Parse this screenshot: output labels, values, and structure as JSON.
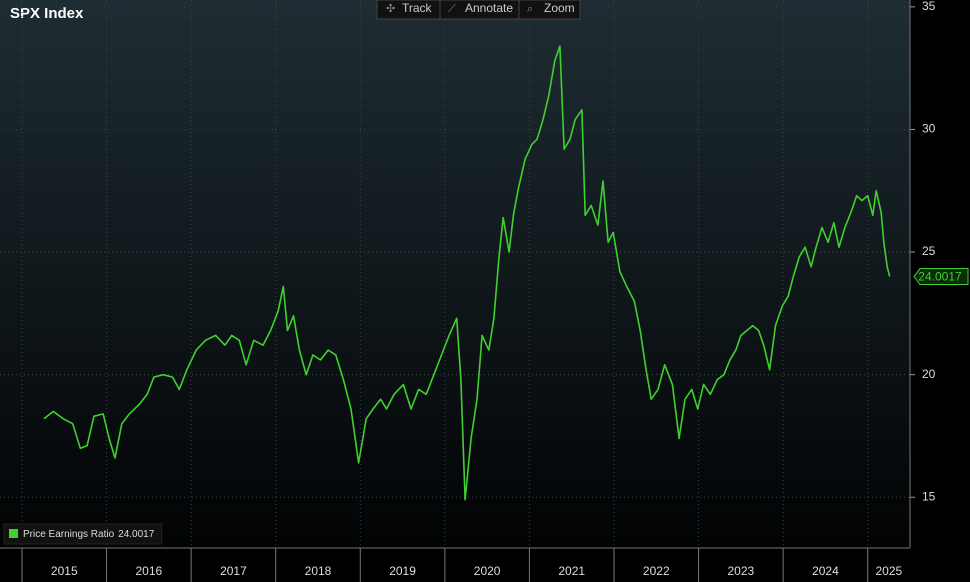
{
  "toolbar": [
    "Track",
    "Annotate",
    "Zoom"
  ],
  "chart_data": {
    "type": "line",
    "title": "SPX Index",
    "x": [
      2015.26,
      2015.37,
      2015.49,
      2015.6,
      2015.69,
      2015.77,
      2015.85,
      2015.96,
      2016.03,
      2016.1,
      2016.18,
      2016.27,
      2016.39,
      2016.48,
      2016.56,
      2016.67,
      2016.78,
      2016.86,
      2016.95,
      2017.06,
      2017.17,
      2017.29,
      2017.4,
      2017.48,
      2017.57,
      2017.65,
      2017.74,
      2017.85,
      2017.94,
      2018.03,
      2018.09,
      2018.14,
      2018.21,
      2018.28,
      2018.36,
      2018.44,
      2018.53,
      2018.62,
      2018.71,
      2018.8,
      2018.89,
      2018.98,
      2019.07,
      2019.15,
      2019.24,
      2019.31,
      2019.4,
      2019.51,
      2019.6,
      2019.69,
      2019.78,
      2019.87,
      2019.96,
      2020.05,
      2020.14,
      2020.19,
      2020.24,
      2020.31,
      2020.38,
      2020.44,
      2020.52,
      2020.58,
      2020.64,
      2020.69,
      2020.76,
      2020.81,
      2020.87,
      2020.95,
      2021.03,
      2021.09,
      2021.16,
      2021.23,
      2021.3,
      2021.36,
      2021.41,
      2021.48,
      2021.54,
      2021.62,
      2021.66,
      2021.73,
      2021.81,
      2021.87,
      2021.93,
      2021.99,
      2022.07,
      2022.15,
      2022.24,
      2022.31,
      2022.38,
      2022.44,
      2022.52,
      2022.6,
      2022.69,
      2022.77,
      2022.84,
      2022.92,
      2022.99,
      2023.06,
      2023.14,
      2023.22,
      2023.3,
      2023.37,
      2023.44,
      2023.5,
      2023.57,
      2023.64,
      2023.71,
      2023.77,
      2023.84,
      2023.91,
      2023.99,
      2024.06,
      2024.12,
      2024.19,
      2024.26,
      2024.33,
      2024.39,
      2024.46,
      2024.53,
      2024.6,
      2024.66,
      2024.73,
      2024.8,
      2024.87,
      2024.93,
      2025.0,
      2025.06,
      2025.1,
      2025.16,
      2025.19,
      2025.23,
      2025.26
    ],
    "series": [
      {
        "name": "Price Earnings Ratio",
        "color": "#3fd12e",
        "values": [
          18.2,
          18.5,
          18.2,
          18.0,
          17.0,
          17.1,
          18.3,
          18.4,
          17.4,
          16.6,
          18.0,
          18.4,
          18.8,
          19.2,
          19.9,
          20.0,
          19.9,
          19.4,
          20.2,
          21.0,
          21.4,
          21.6,
          21.2,
          21.6,
          21.4,
          20.4,
          21.4,
          21.2,
          21.8,
          22.6,
          23.6,
          21.8,
          22.4,
          21.0,
          20.0,
          20.8,
          20.6,
          21.0,
          20.8,
          19.8,
          18.6,
          16.4,
          18.2,
          18.6,
          19.0,
          18.6,
          19.2,
          19.6,
          18.6,
          19.4,
          19.2,
          20.0,
          20.8,
          21.6,
          22.3,
          19.8,
          14.9,
          17.4,
          19.0,
          21.6,
          21.0,
          22.3,
          24.8,
          26.4,
          25.0,
          26.5,
          27.6,
          28.8,
          29.4,
          29.6,
          30.4,
          31.4,
          32.8,
          33.4,
          29.2,
          29.6,
          30.4,
          30.8,
          26.5,
          26.9,
          26.1,
          27.9,
          25.4,
          25.8,
          24.2,
          23.6,
          23.0,
          21.8,
          20.2,
          19.0,
          19.4,
          20.4,
          19.6,
          17.4,
          19.0,
          19.4,
          18.6,
          19.6,
          19.2,
          19.8,
          20.0,
          20.6,
          21.0,
          21.6,
          21.8,
          22.0,
          21.8,
          21.2,
          20.2,
          22.0,
          22.8,
          23.2,
          24.0,
          24.8,
          25.2,
          24.4,
          25.2,
          26.0,
          25.4,
          26.2,
          25.2,
          26.0,
          26.6,
          27.3,
          27.1,
          27.3,
          26.5,
          27.5,
          26.6,
          25.4,
          24.4,
          24.0017
        ]
      }
    ],
    "xlim": [
      2014.74,
      2025.5
    ],
    "xticks": [
      2015,
      2016,
      2017,
      2018,
      2019,
      2020,
      2021,
      2022,
      2023,
      2024,
      2025
    ],
    "ylim": [
      12.93,
      35.28
    ],
    "yticks": [
      15,
      20,
      25,
      30,
      35
    ],
    "grid": true,
    "legend": "bottom-left"
  }
}
